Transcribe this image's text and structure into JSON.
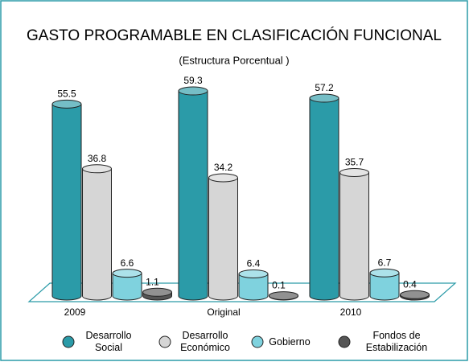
{
  "chart_data": {
    "type": "bar3d",
    "title": "GASTO PROGRAMABLE EN CLASIFICACIÓN FUNCIONAL",
    "subtitle": "(Estructura Porcentual )",
    "categories": [
      "2009",
      "Original",
      "2010"
    ],
    "series": [
      {
        "name": "Desarrollo Social",
        "color": "#2b9ba8",
        "values": [
          55.5,
          59.3,
          57.2
        ]
      },
      {
        "name": "Desarrollo Económico",
        "color": "#d6d6d6",
        "values": [
          36.8,
          34.2,
          35.7
        ]
      },
      {
        "name": "Gobierno",
        "color": "#7fd2de",
        "values": [
          6.6,
          6.4,
          6.7
        ]
      },
      {
        "name": "Fondos de Estabilización",
        "color": "#555555",
        "values": [
          1.1,
          0.1,
          0.4
        ]
      }
    ],
    "legend": "bottom"
  }
}
